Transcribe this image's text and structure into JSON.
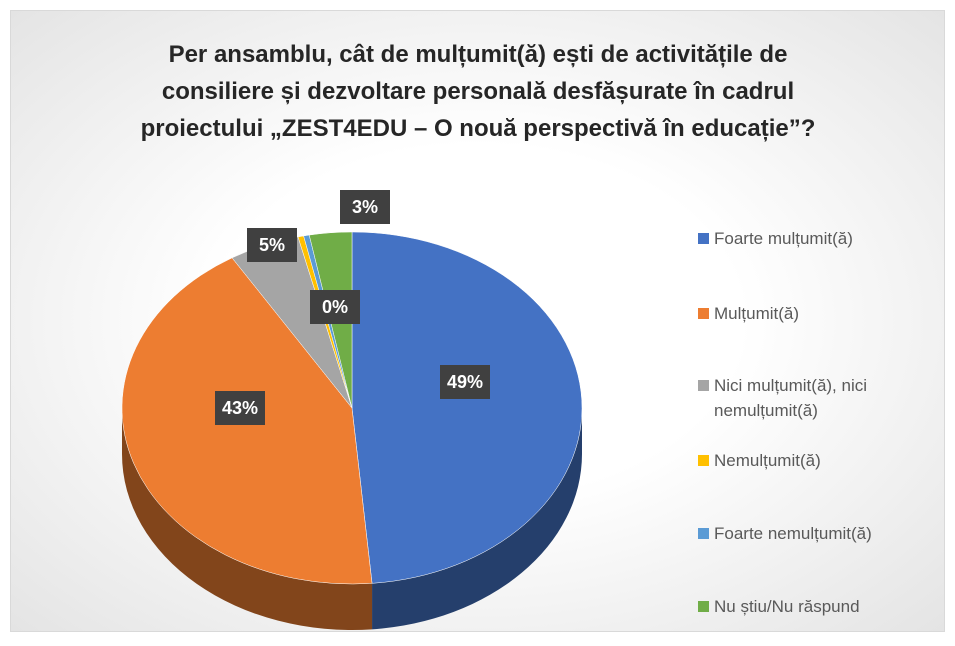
{
  "chart_data": {
    "type": "pie",
    "title": "Per ansamblu, cât de mulțumit(ă) ești de activitățile de consiliere și dezvoltare personală desfășurate în cadrul proiectului „ZEST4EDU – O nouă perspectivă în educație”?",
    "categories": [
      "Foarte mulțumit(ă)",
      "Mulțumit(ă)",
      "Nici mulțumit(ă), nici nemulțumit(ă)",
      "Nemulțumit(ă)",
      "Foarte nemulțumit(ă)",
      "Nu știu/Nu răspund"
    ],
    "values": [
      49,
      43,
      5,
      0.4,
      0.4,
      3
    ],
    "value_labels": [
      "49%",
      "43%",
      "5%",
      "0%",
      null,
      "3%"
    ],
    "colors": [
      "#4472c4",
      "#ed7d31",
      "#a5a5a5",
      "#ffc000",
      "#5b9bd5",
      "#70ad47"
    ],
    "legend": "right"
  }
}
